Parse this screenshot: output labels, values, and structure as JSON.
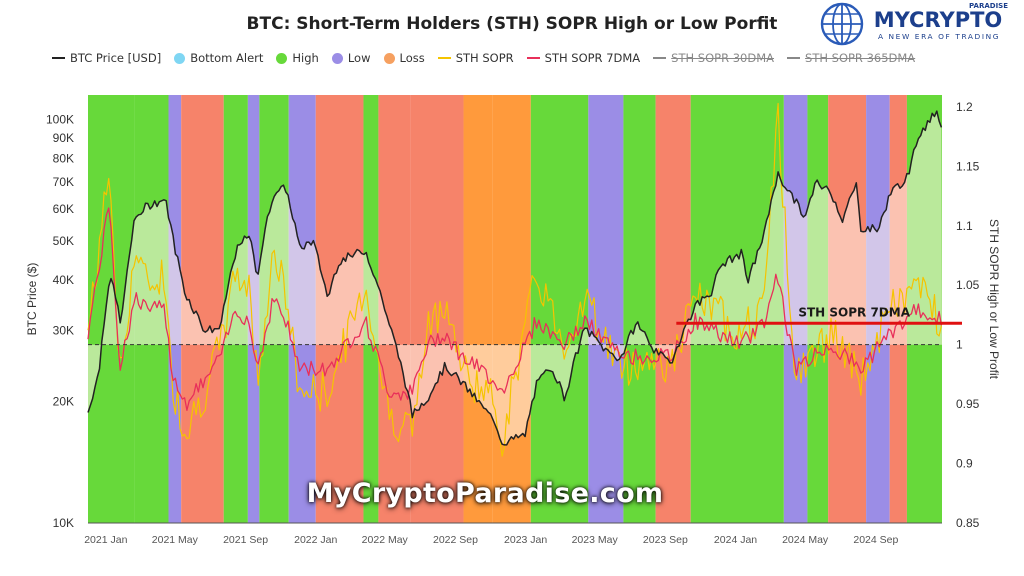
{
  "logo": {
    "tag": "PARADISE",
    "name": "MYCRYPTO",
    "slogan": "A NEW ERA OF TRADING"
  },
  "watermark": "MyCryptoParadise.com",
  "colors": {
    "high": "#67d93a",
    "low": "#9b8de6",
    "loss": "#f6836a",
    "lossDeep": "#ff9a3c",
    "sopr": "#f5c400",
    "sopr7": "#e8305a",
    "price": "#222222",
    "alert": "#7fd6f3",
    "highlight": "#e01010"
  },
  "chart_data": {
    "type": "area",
    "title": "BTC: Short-Term Holders (STH) SOPR High or Low Porfit",
    "legend": [
      {
        "label": "BTC Price [USD]",
        "color": "#222222",
        "marker": "line",
        "active": true
      },
      {
        "label": "Bottom Alert",
        "color": "#7fd6f3",
        "marker": "dot",
        "active": true
      },
      {
        "label": "High",
        "color": "#67d93a",
        "marker": "dot",
        "active": true
      },
      {
        "label": "Low",
        "color": "#9b8de6",
        "marker": "dot",
        "active": true
      },
      {
        "label": "Loss",
        "color": "#f6a060",
        "marker": "dot",
        "active": true
      },
      {
        "label": "STH SOPR",
        "color": "#f5c400",
        "marker": "line",
        "active": true
      },
      {
        "label": "STH SOPR 7DMA",
        "color": "#e8305a",
        "marker": "line",
        "active": true
      },
      {
        "label": "STH SOPR 30DMA",
        "color": "#888888",
        "marker": "line",
        "active": false
      },
      {
        "label": "STH SOPR 365DMA",
        "color": "#888888",
        "marker": "line",
        "active": false
      }
    ],
    "xlabel": "",
    "ylabel_left": "BTC Price ($)",
    "ylabel_right": "STH SOPR High or Low Profit",
    "x_ticks": [
      "2021 Jan",
      "2021 May",
      "2021 Sep",
      "2022 Jan",
      "2022 May",
      "2022 Sep",
      "2023 Jan",
      "2023 May",
      "2023 Sep",
      "2024 Jan",
      "2024 May",
      "2024 Sep"
    ],
    "y_left_ticks": [
      "10K",
      "20K",
      "30K",
      "40K",
      "50K",
      "60K",
      "70K",
      "80K",
      "90K",
      "100K"
    ],
    "y_left_values": [
      10000,
      20000,
      30000,
      40000,
      50000,
      60000,
      70000,
      80000,
      90000,
      100000
    ],
    "y_right_ticks": [
      "0.85",
      "0.9",
      "0.95",
      "1",
      "1.05",
      "1.1",
      "1.15",
      "1.2"
    ],
    "y_right_values": [
      0.85,
      0.9,
      0.95,
      1,
      1.05,
      1.1,
      1.15,
      1.2
    ],
    "y_left_scale": "log",
    "y_left_range": [
      10000,
      115000
    ],
    "y_right_range": [
      0.85,
      1.21
    ],
    "x_range": [
      "2020-12-01",
      "2024-12-25"
    ],
    "reference_line": {
      "value": 1,
      "style": "dashed"
    },
    "annotation": {
      "label": "STH SOPR 7DMA",
      "value": 1.018,
      "x_start": "2023-09-20"
    },
    "btc_price": {
      "name": "BTC Price [USD]",
      "dates": [
        "2020-12-01",
        "2020-12-20",
        "2021-01-08",
        "2021-01-28",
        "2021-02-21",
        "2021-03-13",
        "2021-04-14",
        "2021-05-01",
        "2021-05-19",
        "2021-06-22",
        "2021-07-20",
        "2021-08-15",
        "2021-09-07",
        "2021-09-21",
        "2021-10-20",
        "2021-11-10",
        "2021-12-04",
        "2021-12-27",
        "2022-01-22",
        "2022-02-10",
        "2022-03-28",
        "2022-05-09",
        "2022-06-18",
        "2022-07-15",
        "2022-08-14",
        "2022-09-12",
        "2022-10-20",
        "2022-11-09",
        "2022-11-21",
        "2022-12-31",
        "2023-01-20",
        "2023-02-15",
        "2023-03-10",
        "2023-04-14",
        "2023-05-20",
        "2023-06-15",
        "2023-07-13",
        "2023-08-17",
        "2023-09-11",
        "2023-10-23",
        "2023-11-20",
        "2023-12-08",
        "2024-01-11",
        "2024-01-23",
        "2024-02-20",
        "2024-03-14",
        "2024-04-13",
        "2024-05-01",
        "2024-05-21",
        "2024-06-15",
        "2024-07-05",
        "2024-07-29",
        "2024-08-05",
        "2024-09-06",
        "2024-09-27",
        "2024-10-29",
        "2024-11-13",
        "2024-12-05",
        "2024-12-17",
        "2024-12-25"
      ],
      "values": [
        18800,
        23500,
        41000,
        31000,
        57000,
        61000,
        63500,
        48000,
        37000,
        30000,
        30500,
        47000,
        52000,
        40500,
        66000,
        67500,
        48000,
        50000,
        36000,
        44500,
        47500,
        31000,
        18500,
        20500,
        24500,
        22300,
        19200,
        17800,
        15800,
        16500,
        22000,
        24500,
        20300,
        30400,
        26800,
        25500,
        31400,
        26300,
        25000,
        34500,
        37500,
        43800,
        46500,
        39500,
        52000,
        73000,
        63000,
        57000,
        70000,
        66000,
        56500,
        69000,
        54000,
        53500,
        66000,
        72500,
        91000,
        100000,
        106000,
        94000
      ]
    },
    "sth_sopr": {
      "name": "STH SOPR",
      "dates": [
        "2020-12-01",
        "2021-01-08",
        "2021-01-25",
        "2021-02-21",
        "2021-03-13",
        "2021-04-14",
        "2021-04-25",
        "2021-05-19",
        "2021-06-22",
        "2021-07-20",
        "2021-08-15",
        "2021-09-07",
        "2021-09-21",
        "2021-10-20",
        "2021-11-10",
        "2021-12-04",
        "2022-01-22",
        "2022-03-28",
        "2022-05-09",
        "2022-06-18",
        "2022-07-15",
        "2022-08-14",
        "2022-09-12",
        "2022-11-09",
        "2022-11-21",
        "2023-01-20",
        "2023-03-10",
        "2023-04-14",
        "2023-06-15",
        "2023-08-17",
        "2023-09-11",
        "2023-10-23",
        "2024-01-11",
        "2024-02-20",
        "2024-03-14",
        "2024-04-13",
        "2024-06-15",
        "2024-08-05",
        "2024-09-27",
        "2024-11-13",
        "2024-12-25"
      ],
      "values": [
        1.01,
        1.15,
        0.97,
        1.08,
        1.05,
        1.06,
        0.97,
        0.93,
        0.96,
        1.0,
        1.06,
        1.05,
        0.97,
        1.08,
        1.04,
        0.96,
        0.96,
        1.05,
        0.94,
        0.93,
        1.01,
        1.04,
        0.98,
        0.95,
        0.92,
        1.06,
        1.0,
        1.04,
        0.98,
        0.99,
        0.98,
        1.04,
        1.01,
        1.03,
        1.2,
        0.97,
        1.01,
        0.97,
        1.03,
        1.05,
        1.02
      ]
    },
    "sth_sopr_7dma": {
      "name": "STH SOPR 7DMA",
      "dates": [
        "2020-12-01",
        "2021-01-08",
        "2021-01-25",
        "2021-02-21",
        "2021-03-13",
        "2021-04-14",
        "2021-04-25",
        "2021-05-19",
        "2021-06-22",
        "2021-07-20",
        "2021-08-15",
        "2021-09-07",
        "2021-09-21",
        "2021-10-20",
        "2021-11-10",
        "2021-12-04",
        "2022-01-22",
        "2022-03-28",
        "2022-05-09",
        "2022-06-18",
        "2022-07-15",
        "2022-08-14",
        "2022-09-12",
        "2022-11-09",
        "2022-11-21",
        "2023-01-20",
        "2023-03-10",
        "2023-04-14",
        "2023-06-15",
        "2023-08-17",
        "2023-09-11",
        "2023-10-23",
        "2024-01-11",
        "2024-02-20",
        "2024-03-14",
        "2024-04-13",
        "2024-06-15",
        "2024-08-05",
        "2024-09-27",
        "2024-11-13",
        "2024-12-25"
      ],
      "values": [
        1.01,
        1.12,
        0.98,
        1.04,
        1.03,
        1.03,
        0.98,
        0.95,
        0.97,
        0.99,
        1.03,
        1.02,
        0.98,
        1.04,
        1.02,
        0.98,
        0.98,
        1.02,
        0.96,
        0.96,
        1.0,
        1.01,
        0.99,
        0.97,
        0.96,
        1.02,
        1.0,
        1.02,
        0.99,
        0.99,
        0.99,
        1.02,
        1.0,
        1.02,
        1.06,
        0.98,
        1.0,
        0.98,
        1.01,
        1.03,
        1.02
      ]
    },
    "regimes": [
      {
        "start": "2020-12-01",
        "end": "2021-02-20",
        "state": "high"
      },
      {
        "start": "2021-02-20",
        "end": "2021-04-20",
        "state": "high"
      },
      {
        "start": "2021-04-20",
        "end": "2021-05-12",
        "state": "low"
      },
      {
        "start": "2021-05-12",
        "end": "2021-07-25",
        "state": "loss"
      },
      {
        "start": "2021-07-25",
        "end": "2021-09-05",
        "state": "high"
      },
      {
        "start": "2021-09-05",
        "end": "2021-09-25",
        "state": "low"
      },
      {
        "start": "2021-09-25",
        "end": "2021-11-15",
        "state": "high"
      },
      {
        "start": "2021-11-15",
        "end": "2022-01-01",
        "state": "low"
      },
      {
        "start": "2022-01-01",
        "end": "2022-03-25",
        "state": "loss"
      },
      {
        "start": "2022-03-25",
        "end": "2022-04-20",
        "state": "high"
      },
      {
        "start": "2022-04-20",
        "end": "2022-06-15",
        "state": "loss"
      },
      {
        "start": "2022-06-15",
        "end": "2022-09-15",
        "state": "loss"
      },
      {
        "start": "2022-09-15",
        "end": "2022-11-05",
        "state": "lossDeep"
      },
      {
        "start": "2022-11-05",
        "end": "2023-01-10",
        "state": "lossDeep"
      },
      {
        "start": "2023-01-10",
        "end": "2023-04-20",
        "state": "high"
      },
      {
        "start": "2023-04-20",
        "end": "2023-06-20",
        "state": "low"
      },
      {
        "start": "2023-06-20",
        "end": "2023-08-15",
        "state": "high"
      },
      {
        "start": "2023-08-15",
        "end": "2023-10-15",
        "state": "loss"
      },
      {
        "start": "2023-10-15",
        "end": "2024-03-25",
        "state": "high"
      },
      {
        "start": "2024-03-25",
        "end": "2024-05-05",
        "state": "low"
      },
      {
        "start": "2024-05-05",
        "end": "2024-06-10",
        "state": "high"
      },
      {
        "start": "2024-06-10",
        "end": "2024-08-15",
        "state": "loss"
      },
      {
        "start": "2024-08-15",
        "end": "2024-09-25",
        "state": "low"
      },
      {
        "start": "2024-09-25",
        "end": "2024-10-25",
        "state": "loss"
      },
      {
        "start": "2024-10-25",
        "end": "2024-12-25",
        "state": "high"
      }
    ]
  }
}
